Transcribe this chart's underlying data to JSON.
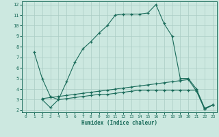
{
  "xlabel": "Humidex (Indice chaleur)",
  "bg_color": "#cce8e0",
  "line_color": "#1a6b5a",
  "grid_color": "#aaccc4",
  "xlim": [
    -0.5,
    23.5
  ],
  "ylim": [
    1.8,
    12.3
  ],
  "xticks": [
    0,
    1,
    2,
    3,
    4,
    5,
    6,
    7,
    8,
    9,
    10,
    11,
    12,
    13,
    14,
    15,
    16,
    17,
    18,
    19,
    20,
    21,
    22,
    23
  ],
  "yticks": [
    2,
    3,
    4,
    5,
    6,
    7,
    8,
    9,
    10,
    11,
    12
  ],
  "line1_x": [
    1,
    2,
    3,
    4,
    5,
    6,
    7,
    8,
    9,
    10,
    11,
    12,
    13,
    14,
    15,
    16,
    17,
    18,
    19,
    20,
    21,
    22,
    23
  ],
  "line1_y": [
    7.5,
    5.0,
    3.3,
    3.0,
    4.7,
    6.5,
    7.8,
    8.5,
    9.3,
    10.0,
    11.0,
    11.1,
    11.1,
    11.1,
    11.2,
    12.0,
    10.2,
    9.0,
    5.0,
    5.0,
    4.0,
    2.2,
    2.5
  ],
  "line2_x": [
    2,
    3,
    4,
    5,
    6,
    7,
    8,
    9,
    10,
    11,
    12,
    13,
    14,
    15,
    16,
    17,
    18,
    19,
    20,
    21,
    22,
    23
  ],
  "line2_y": [
    3.1,
    3.2,
    3.3,
    3.4,
    3.5,
    3.6,
    3.7,
    3.8,
    3.9,
    4.0,
    4.1,
    4.2,
    4.3,
    4.4,
    4.5,
    4.6,
    4.7,
    4.8,
    4.9,
    3.8,
    2.1,
    2.5
  ],
  "line3_x": [
    2,
    3,
    4,
    5,
    6,
    7,
    8,
    9,
    10,
    11,
    12,
    13,
    14,
    15,
    16,
    17,
    18,
    19,
    20,
    21,
    22,
    23
  ],
  "line3_y": [
    3.0,
    2.25,
    3.0,
    3.1,
    3.2,
    3.3,
    3.4,
    3.5,
    3.5,
    3.6,
    3.7,
    3.8,
    3.9,
    3.9,
    3.9,
    3.9,
    3.9,
    3.9,
    3.9,
    3.9,
    2.1,
    2.5
  ]
}
